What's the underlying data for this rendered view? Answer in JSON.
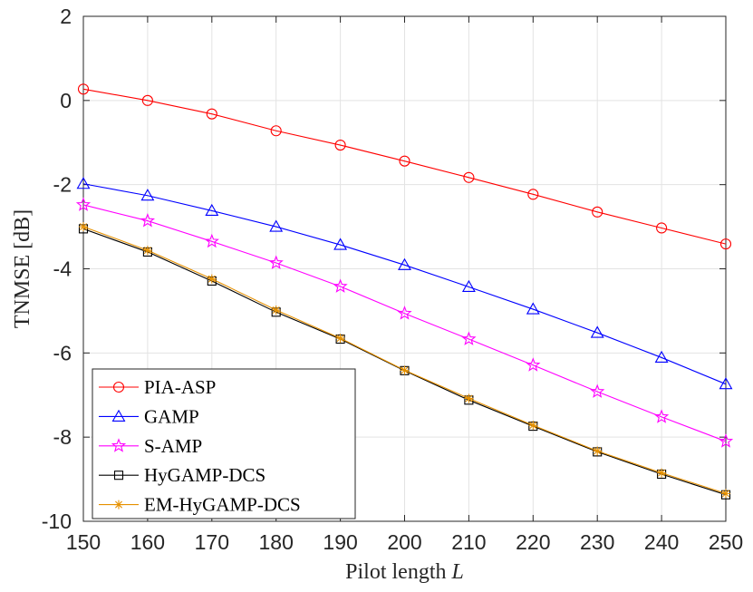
{
  "chart_data": {
    "type": "line",
    "title": "",
    "xlabel": "Pilot length",
    "xlabel_var": "L",
    "ylabel": "TNMSE [dB]",
    "x": [
      150,
      160,
      170,
      180,
      190,
      200,
      210,
      220,
      230,
      240,
      250
    ],
    "xlim": [
      150,
      250
    ],
    "ylim": [
      -10,
      2
    ],
    "xticks": [
      "150",
      "160",
      "170",
      "180",
      "190",
      "200",
      "210",
      "220",
      "230",
      "240",
      "250"
    ],
    "yticks": [
      "2",
      "0",
      "-2",
      "-4",
      "-6",
      "-8",
      "-10"
    ],
    "ytick_values": [
      2,
      0,
      -2,
      -4,
      -6,
      -8,
      -10
    ],
    "grid": true,
    "legend_position": "bottom-left",
    "series": [
      {
        "name": "PIA-ASP",
        "color": "#ff0000",
        "marker": "circle",
        "values": [
          0.27,
          0.0,
          -0.32,
          -0.72,
          -1.06,
          -1.44,
          -1.83,
          -2.23,
          -2.65,
          -3.03,
          -3.41
        ]
      },
      {
        "name": "GAMP",
        "color": "#0000ff",
        "marker": "triangle",
        "values": [
          -1.98,
          -2.26,
          -2.62,
          -3.0,
          -3.43,
          -3.91,
          -4.43,
          -4.96,
          -5.52,
          -6.11,
          -6.74
        ]
      },
      {
        "name": "S-AMP",
        "color": "#ff00ff",
        "marker": "star",
        "values": [
          -2.48,
          -2.86,
          -3.35,
          -3.86,
          -4.42,
          -5.06,
          -5.67,
          -6.29,
          -6.92,
          -7.52,
          -8.1
        ]
      },
      {
        "name": "HyGAMP-DCS",
        "color": "#000000",
        "marker": "square",
        "values": [
          -3.05,
          -3.6,
          -4.29,
          -5.03,
          -5.67,
          -6.42,
          -7.12,
          -7.74,
          -8.35,
          -8.88,
          -9.37
        ]
      },
      {
        "name": "EM-HyGAMP-DCS",
        "color": "#e69100",
        "marker": "asterisk",
        "values": [
          -3.0,
          -3.56,
          -4.24,
          -4.98,
          -5.65,
          -6.41,
          -7.08,
          -7.72,
          -8.33,
          -8.85,
          -9.34
        ]
      }
    ]
  }
}
